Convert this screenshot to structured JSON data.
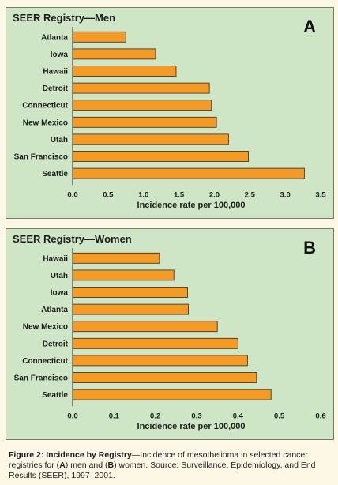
{
  "chart_data": [
    {
      "type": "bar",
      "orientation": "horizontal",
      "title": "SEER Registry—Men",
      "panel_letter": "A",
      "categories": [
        "Atlanta",
        "Iowa",
        "Hawaii",
        "Detroit",
        "Connecticut",
        "New Mexico",
        "Utah",
        "San Francisco",
        "Seattle"
      ],
      "values": [
        0.75,
        1.17,
        1.46,
        1.93,
        1.96,
        2.03,
        2.2,
        2.48,
        3.27
      ],
      "xlabel": "Incidence rate per 100,000",
      "ylabel": "",
      "xlim": [
        0,
        3.5
      ],
      "xticks": [
        "0.0",
        "0.5",
        "1.0",
        "1.5",
        "2.0",
        "2.5",
        "3.0",
        "3.5"
      ],
      "tick_values": [
        0,
        0.5,
        1.0,
        1.5,
        2.0,
        2.5,
        3.0,
        3.5
      ],
      "grid": false,
      "bar_color": "#f59a23",
      "background": "#cfe6c6"
    },
    {
      "type": "bar",
      "orientation": "horizontal",
      "title": "SEER Registry—Women",
      "panel_letter": "B",
      "categories": [
        "Hawaii",
        "Utah",
        "Iowa",
        "Atlanta",
        "New Mexico",
        "Detroit",
        "Connecticut",
        "San Francisco",
        "Seattle"
      ],
      "values": [
        0.21,
        0.245,
        0.278,
        0.28,
        0.35,
        0.4,
        0.423,
        0.445,
        0.48
      ],
      "xlabel": "Incidence rate per 100,000",
      "ylabel": "",
      "xlim": [
        0,
        0.6
      ],
      "xticks": [
        "0.0",
        "0.1",
        "0.2",
        "0.3",
        "0.4",
        "0.5",
        "0.6"
      ],
      "tick_values": [
        0,
        0.1,
        0.2,
        0.3,
        0.4,
        0.5,
        0.6
      ],
      "grid": false,
      "bar_color": "#f59a23",
      "background": "#cfe6c6"
    }
  ],
  "caption": {
    "lead": "Figure 2: Incidence by Registry",
    "pre": "—Incidence of mesothelioma in selected cancer registries for (",
    "a": "A",
    "mid": ") men and (",
    "b": "B",
    "post": ") women. Source: Surveillance, Epidemiology, and End Results (SEER), 1997–2001."
  }
}
